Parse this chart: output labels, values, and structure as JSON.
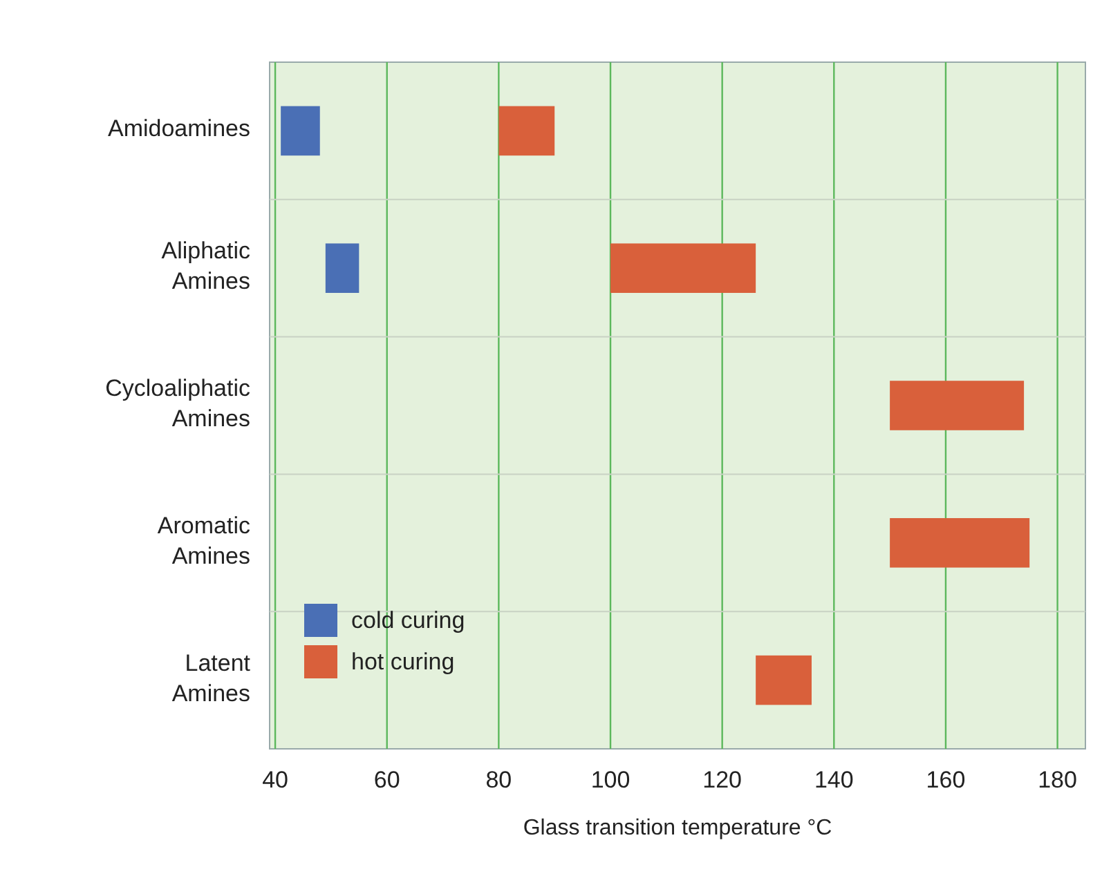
{
  "chart_data": {
    "type": "bar",
    "orientation": "horizontal",
    "xlabel": "Glass transition temperature °C",
    "categories": [
      "Amidoamines",
      "Aliphatic Amines",
      "Cycloaliphatic Amines",
      "Aromatic Amines",
      "Latent Amines"
    ],
    "series": [
      {
        "name": "cold curing",
        "color": "#4a6fb5",
        "base": [
          41,
          49,
          null,
          null,
          null
        ],
        "values": [
          7,
          6,
          null,
          null,
          null
        ]
      },
      {
        "name": "hot curing",
        "color": "#d9603b",
        "base": [
          80,
          100,
          150,
          150,
          126
        ],
        "values": [
          10,
          26,
          24,
          25,
          10
        ]
      }
    ],
    "xlim": [
      39,
      185
    ],
    "xticks": [
      40,
      60,
      80,
      100,
      120,
      140,
      160,
      180
    ],
    "grid": "x",
    "legend": "bottom left"
  }
}
